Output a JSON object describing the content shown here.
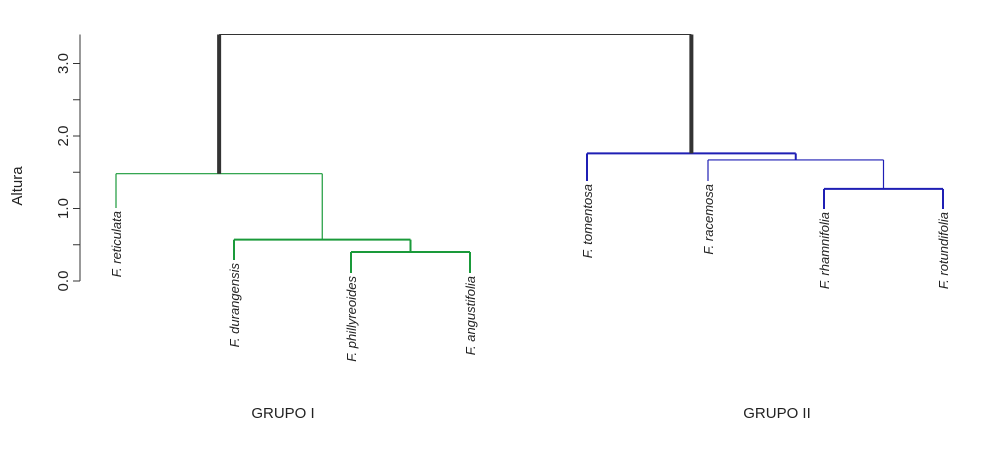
{
  "chart_data": {
    "type": "dendrogram",
    "title": "",
    "ylabel": "Altura",
    "ylim": [
      0,
      3.4
    ],
    "yticks": [
      {
        "value": 0.0,
        "label": "0.0"
      },
      {
        "value": 1.0,
        "label": "1.0"
      },
      {
        "value": 2.0,
        "label": "2.0"
      },
      {
        "value": 3.0,
        "label": "3.0"
      }
    ],
    "leaves": [
      {
        "id": "reticulata",
        "label": "F. reticulata",
        "cluster": "green"
      },
      {
        "id": "durangensis",
        "label": "F. durangensis",
        "cluster": "green"
      },
      {
        "id": "phillyreoides",
        "label": "F. phillyreoides",
        "cluster": "green"
      },
      {
        "id": "angustifolia",
        "label": "F. angustifolia",
        "cluster": "green"
      },
      {
        "id": "tomentosa",
        "label": "F. tomentosa",
        "cluster": "blue"
      },
      {
        "id": "racemosa",
        "label": "F. racemosa",
        "cluster": "blue"
      },
      {
        "id": "rhamnifolia",
        "label": "F. rhamnifolia",
        "cluster": "blue"
      },
      {
        "id": "rotundifolia",
        "label": "F. rotundifolia",
        "cluster": "blue"
      }
    ],
    "merges": [
      {
        "id": "m1",
        "left": "phillyreoides",
        "right": "angustifolia",
        "height": 0.4,
        "cluster": "green"
      },
      {
        "id": "m2",
        "left": "durangensis",
        "right": "m1",
        "height": 0.57,
        "cluster": "green"
      },
      {
        "id": "m3",
        "left": "reticulata",
        "right": "m2",
        "height": 1.48,
        "cluster": "green"
      },
      {
        "id": "m4",
        "left": "rhamnifolia",
        "right": "rotundifolia",
        "height": 1.27,
        "cluster": "blue"
      },
      {
        "id": "m5",
        "left": "racemosa",
        "right": "m4",
        "height": 1.67,
        "cluster": "blue"
      },
      {
        "id": "m6",
        "left": "tomentosa",
        "right": "m5",
        "height": 1.76,
        "cluster": "blue"
      },
      {
        "id": "root",
        "left": "m3",
        "right": "m6",
        "height": 3.4,
        "cluster": "root"
      }
    ],
    "groups": [
      {
        "label": "GRUPO I",
        "cluster": "green"
      },
      {
        "label": "GRUPO II",
        "cluster": "blue"
      }
    ],
    "colors": {
      "green": "#1a9a3a",
      "blue": "#1f1fb4",
      "root": "#333333",
      "axis": "#333333"
    }
  }
}
